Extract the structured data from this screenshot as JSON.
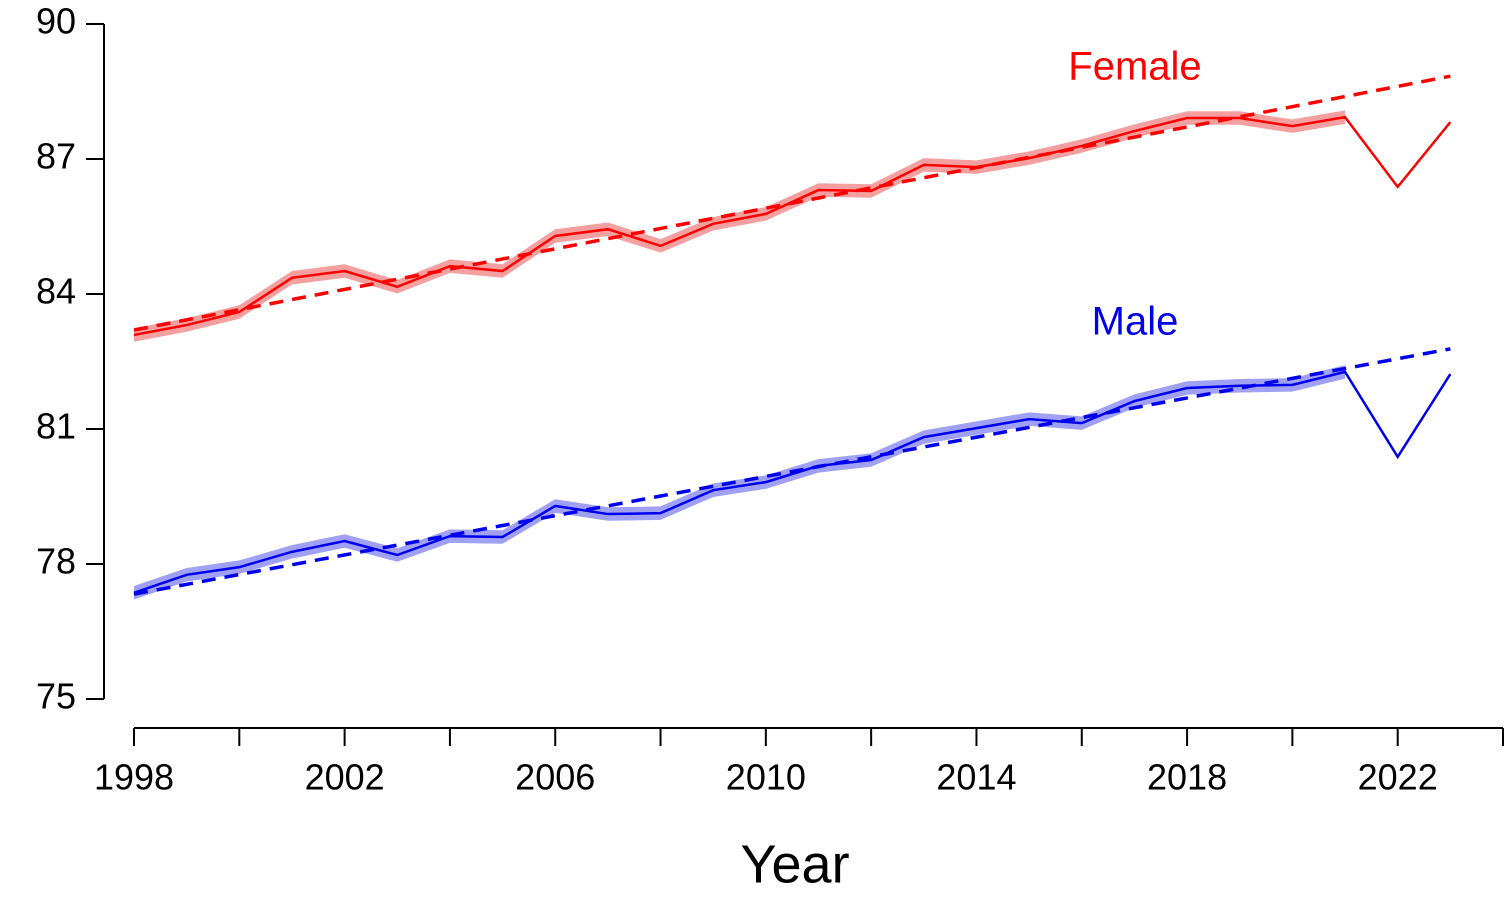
{
  "chart_data": {
    "type": "line",
    "xlabel": "Year",
    "x": [
      1998,
      1999,
      2000,
      2001,
      2002,
      2003,
      2004,
      2005,
      2006,
      2007,
      2008,
      2009,
      2010,
      2011,
      2012,
      2013,
      2014,
      2015,
      2016,
      2017,
      2018,
      2019,
      2020,
      2021,
      2022,
      2023
    ],
    "series": [
      {
        "name": "Female",
        "color": "#ff0000",
        "band_color": "#f4a0a0",
        "ci_halfwidth": 0.15,
        "ci_end": 2021,
        "values": [
          83.09,
          83.31,
          83.6,
          84.36,
          84.51,
          84.16,
          84.62,
          84.51,
          85.29,
          85.44,
          85.07,
          85.56,
          85.78,
          86.31,
          86.29,
          86.87,
          86.82,
          87.02,
          87.29,
          87.62,
          87.91,
          87.91,
          87.73,
          87.93,
          86.38,
          87.82
        ],
        "trend": {
          "x": [
            1998,
            2023
          ],
          "values": [
            83.2,
            88.84
          ]
        }
      },
      {
        "name": "Male",
        "color": "#0000ee",
        "band_color": "#a0a0f4",
        "ci_halfwidth": 0.15,
        "ci_end": 2021,
        "values": [
          77.36,
          77.76,
          77.93,
          78.27,
          78.51,
          78.2,
          78.62,
          78.6,
          79.29,
          79.11,
          79.13,
          79.64,
          79.82,
          80.18,
          80.31,
          80.82,
          81.02,
          81.22,
          81.13,
          81.62,
          81.91,
          81.96,
          81.98,
          82.27,
          80.38,
          82.22
        ],
        "trend": {
          "x": [
            1998,
            2023
          ],
          "values": [
            77.33,
            82.78
          ]
        }
      }
    ],
    "xlim": [
      1998,
      2024
    ],
    "xticks": [
      1998,
      2002,
      2006,
      2010,
      2014,
      2018,
      2022
    ],
    "xminor_ticks": [
      2000,
      2004,
      2008,
      2012,
      2016,
      2020,
      2024
    ],
    "ylim": [
      75,
      90
    ],
    "yticks": [
      75,
      78,
      81,
      84,
      87,
      90
    ],
    "grid": false
  }
}
